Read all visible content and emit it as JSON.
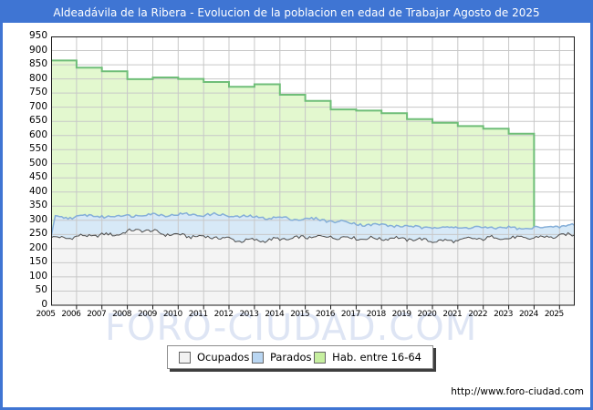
{
  "window": {
    "title": "Aldeadávila de la Ribera - Evolucion de la poblacion en edad de Trabajar Agosto de 2025"
  },
  "watermark": "FORO-CIUDAD.COM",
  "footer": {
    "url": "http://www.foro-ciudad.com"
  },
  "ui_colors": {
    "titlebar": "#3f75d3",
    "frame_border": "#3f75d3",
    "grid": "#c8c8c8",
    "plot_border": "#1a1a1a",
    "watermark": "#dee5f4"
  },
  "legend": {
    "items": [
      {
        "label": "Ocupados",
        "color": "#f2f2f2"
      },
      {
        "label": "Parados",
        "color": "#b9d6f2"
      },
      {
        "label": "Hab. entre 16-64",
        "color": "#c6ef9f"
      }
    ]
  },
  "chart_data": {
    "type": "area",
    "title": "Aldeadávila de la Ribera - Evolucion de la poblacion en edad de Trabajar Agosto de 2025",
    "grid": true,
    "legend_position": "bottom",
    "x_axis": {
      "min": 2005,
      "max": 2025.67,
      "tick_labels": [
        "2005",
        "2006",
        "2007",
        "2008",
        "2009",
        "2010",
        "2011",
        "2012",
        "2013",
        "2014",
        "2015",
        "2016",
        "2017",
        "2018",
        "2019",
        "2020",
        "2021",
        "2022",
        "2023",
        "2024",
        "2025"
      ]
    },
    "y_axis": {
      "min": 0,
      "max": 950,
      "step": 50,
      "tick_labels": [
        "0",
        "50",
        "100",
        "150",
        "200",
        "250",
        "300",
        "350",
        "400",
        "450",
        "500",
        "550",
        "600",
        "650",
        "700",
        "750",
        "800",
        "850",
        "900",
        "950"
      ]
    },
    "series": [
      {
        "name": "Hab. entre 16-64",
        "type": "step_area",
        "frequency": "annual",
        "years": [
          2005,
          2006,
          2007,
          2008,
          2009,
          2010,
          2011,
          2012,
          2013,
          2014,
          2015,
          2016,
          2017,
          2018,
          2019,
          2020,
          2021,
          2022,
          2023
        ],
        "values": [
          865,
          840,
          827,
          799,
          805,
          800,
          789,
          772,
          781,
          744,
          722,
          692,
          688,
          679,
          658,
          645,
          633,
          624,
          606
        ],
        "ends_at": 2024.0,
        "fill": "#e3f8cf",
        "line": "#6fbe78"
      },
      {
        "name": "Parados",
        "type": "area",
        "frequency": "monthly",
        "stacked_on": "Ocupados",
        "last_point": "Agosto 2025",
        "years": [
          2005,
          2006,
          2007,
          2008,
          2009,
          2010,
          2011,
          2012,
          2013,
          2014,
          2015,
          2016,
          2017,
          2018,
          2019,
          2020,
          2021,
          2022,
          2023,
          2024,
          2025
        ],
        "annual_values": [
          72,
          70,
          64,
          52,
          68,
          76,
          80,
          85,
          80,
          70,
          60,
          54,
          49,
          45,
          44,
          50,
          40,
          36,
          34,
          35,
          33
        ],
        "fill": "#d7e9f7",
        "line": "#84aed8"
      },
      {
        "name": "Ocupados",
        "type": "area",
        "frequency": "monthly",
        "last_point": "Agosto 2025",
        "years": [
          2005,
          2006,
          2007,
          2008,
          2009,
          2010,
          2011,
          2012,
          2013,
          2014,
          2015,
          2016,
          2017,
          2018,
          2019,
          2020,
          2021,
          2022,
          2023,
          2024,
          2025
        ],
        "annual_values": [
          238,
          246,
          250,
          268,
          252,
          244,
          240,
          228,
          230,
          236,
          243,
          240,
          235,
          237,
          231,
          226,
          234,
          239,
          237,
          241,
          249
        ],
        "fill": "#f4f4f4",
        "line": "#4d4d4d"
      }
    ]
  }
}
